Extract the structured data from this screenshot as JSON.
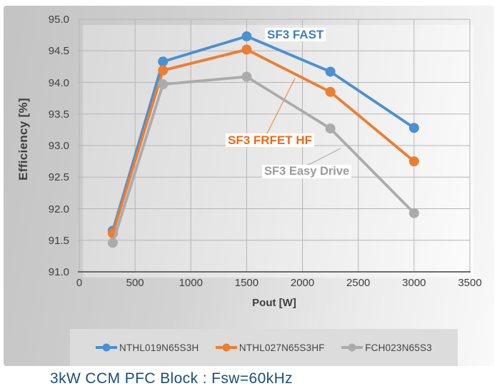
{
  "chart": {
    "y_axis_title": "Efficiency [%]",
    "x_axis_title": "Pout [W]",
    "y_tick_labels": [
      "95.0",
      "94.5",
      "94.0",
      "93.5",
      "93.0",
      "92.5",
      "92.0",
      "91.5",
      "91.0"
    ],
    "x_tick_labels": [
      "0",
      "500",
      "1000",
      "1500",
      "2000",
      "2500",
      "3000",
      "3500"
    ],
    "annotations": [
      {
        "text": "SF3 FAST",
        "color": "#3d7fc1"
      },
      {
        "text": "SF3 FRFET HF",
        "color": "#ed6a1a"
      },
      {
        "text": "SF3 Easy Drive",
        "color": "#9b9b9b"
      }
    ],
    "legend": [
      {
        "label": "NTHL019N65S3H",
        "color": "#4a90d2"
      },
      {
        "label": "NTHL027N65S3HF",
        "color": "#ed7d31"
      },
      {
        "label": "FCH023N65S3",
        "color": "#ababab"
      }
    ],
    "caption": "3kW CCM PFC Block : Fsw=60kHz",
    "colors": {
      "gridline": "#b5b5b5",
      "axis_line": "#5a5a5a",
      "axis_text": "#3f3f3f",
      "caption_text": "#1a4e7a",
      "legend_background": "#dcdcdc"
    }
  },
  "chart_data": {
    "type": "line",
    "title": "",
    "xlabel": "Pout [W]",
    "ylabel": "Efficiency [%]",
    "x": [
      300,
      750,
      1500,
      2250,
      3000
    ],
    "series": [
      {
        "name": "NTHL019N65S3H",
        "annotation": "SF3 FAST",
        "color": "#4a90d2",
        "values": [
          91.65,
          94.33,
          94.73,
          94.17,
          93.28
        ]
      },
      {
        "name": "NTHL027N65S3HF",
        "annotation": "SF3 FRFET HF",
        "color": "#ed7d31",
        "values": [
          91.61,
          94.19,
          94.52,
          93.85,
          92.75
        ]
      },
      {
        "name": "FCH023N65S3",
        "annotation": "SF3 Easy Drive",
        "color": "#ababab",
        "values": [
          91.46,
          93.97,
          94.09,
          93.27,
          91.93
        ]
      }
    ],
    "xlim": [
      0,
      3500
    ],
    "ylim": [
      91.0,
      95.0
    ],
    "x_tick_step": 500,
    "y_tick_step": 0.5,
    "grid": true,
    "legend_position": "bottom"
  }
}
